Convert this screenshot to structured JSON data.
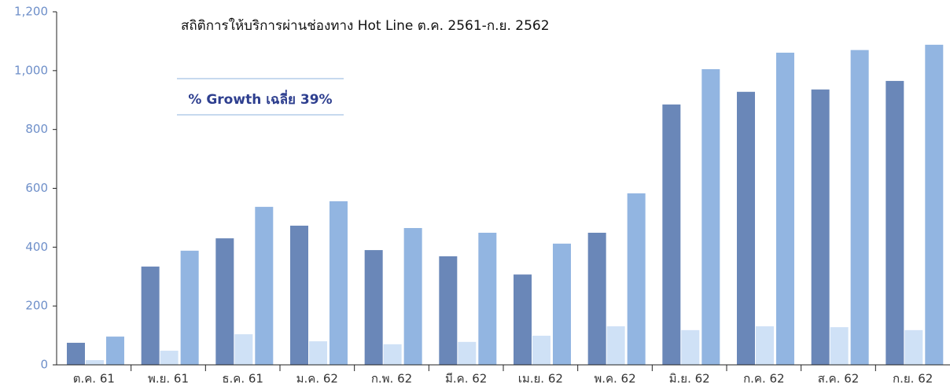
{
  "chart_data": {
    "type": "bar",
    "title": "สถิติการให้บริการผ่านช่องทาง Hot Line ต.ค. 2561-ก.ย. 2562",
    "annotation": "% Growth เฉลี่ย 39%",
    "categories": [
      "ต.ค. 61",
      "พ.ย. 61",
      "ธ.ค. 61",
      "ม.ค. 62",
      "ก.พ. 62",
      "มี.ค. 62",
      "เม.ย. 62",
      "พ.ค. 62",
      "มิ.ย. 62",
      "ก.ค. 62",
      "ส.ค. 62",
      "ก.ย. 62"
    ],
    "series": [
      {
        "color": "#6a87b8",
        "values": [
          75,
          334,
          430,
          473,
          390,
          369,
          307,
          449,
          885,
          928,
          936,
          965
        ]
      },
      {
        "color": "#cfe1f6",
        "values": [
          16,
          48,
          104,
          80,
          70,
          78,
          99,
          131,
          118,
          131,
          128,
          118
        ]
      },
      {
        "color": "#92b5e1",
        "values": [
          96,
          388,
          537,
          556,
          465,
          449,
          412,
          583,
          1005,
          1061,
          1070,
          1088
        ]
      }
    ],
    "ylim": [
      0,
      1200
    ],
    "yticks": [
      0,
      200,
      400,
      600,
      800,
      {
        "value": 1000,
        "label": "1,000"
      },
      {
        "value": 1200,
        "label": "1,200"
      }
    ]
  }
}
